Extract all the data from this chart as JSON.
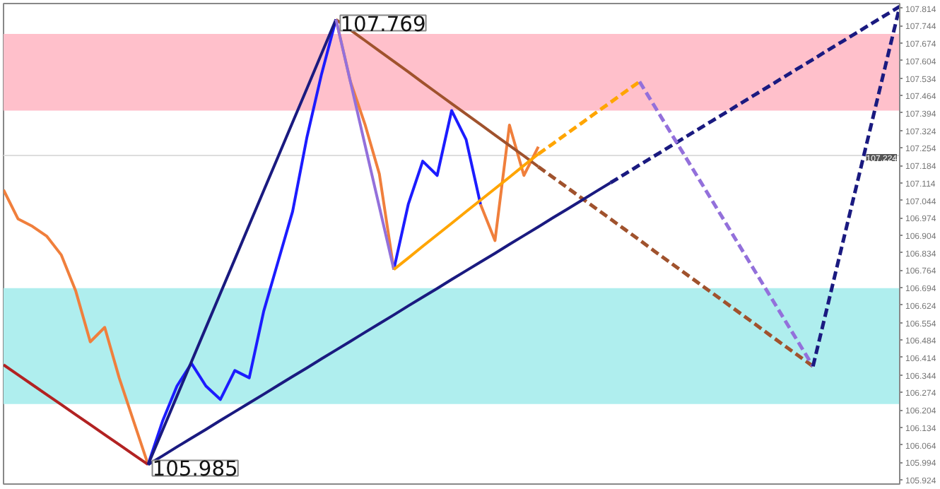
{
  "chart_data": {
    "type": "line",
    "ylim": [
      105.907,
      107.833
    ],
    "tick_labels": "y",
    "grid": false,
    "marker": "none",
    "categories": [
      null,
      null,
      null,
      null,
      null,
      null,
      null,
      null,
      null,
      null,
      null,
      null,
      null,
      null,
      null,
      null,
      null,
      null,
      null,
      null,
      null,
      null,
      null,
      null,
      null,
      null,
      null,
      null,
      null,
      null,
      null,
      null,
      null,
      null,
      null,
      null,
      null,
      null,
      null,
      null,
      null,
      null,
      null,
      null,
      null,
      null,
      null,
      null,
      null,
      null,
      null,
      null,
      null,
      null,
      null,
      null,
      null,
      null,
      null,
      null,
      null,
      null,
      null
    ],
    "yticks": [
      105.924,
      105.994,
      106.064,
      106.134,
      106.204,
      106.274,
      106.344,
      106.414,
      106.484,
      106.554,
      106.624,
      106.694,
      106.764,
      106.834,
      106.904,
      106.974,
      107.044,
      107.114,
      107.184,
      107.254,
      107.324,
      107.394,
      107.464,
      107.534,
      107.604,
      107.674,
      107.744,
      107.814
    ],
    "ref_lines": [
      {
        "axis": "y",
        "value": 107.224,
        "label": "107.224",
        "color": "#dddddd"
      }
    ],
    "bands": [
      {
        "axis": "y",
        "from": 107.404,
        "to": 107.711,
        "color": "#ffc0cb"
      },
      {
        "axis": "y",
        "from": 106.228,
        "to": 106.692,
        "color": "#afeeee"
      }
    ],
    "series": [
      {
        "color": "#f07f3c",
        "line_style": "solid",
        "values": [
          107.086,
          106.97,
          106.94,
          106.9,
          106.825,
          106.68,
          106.477,
          106.535,
          106.333,
          106.159,
          105.985,
          null,
          null,
          null,
          null,
          null,
          null,
          null,
          null,
          null,
          null,
          null,
          null,
          null,
          null,
          null,
          null,
          null,
          null,
          null,
          null,
          null,
          null,
          null,
          null,
          null,
          null,
          null,
          null,
          null,
          null,
          null,
          null,
          null,
          null,
          null,
          null,
          null,
          null,
          null,
          null,
          null,
          null,
          null,
          null,
          null,
          null,
          null,
          null,
          null,
          null,
          null,
          null
        ]
      },
      {
        "color": "#1c1cff",
        "line_style": "solid",
        "values": [
          null,
          null,
          null,
          null,
          null,
          null,
          null,
          null,
          null,
          null,
          105.985,
          106.159,
          106.3,
          106.391,
          106.3,
          106.246,
          106.362,
          106.333,
          106.6,
          106.8,
          107.0,
          107.3,
          107.55,
          107.769,
          null,
          null,
          null,
          null,
          null,
          null,
          null,
          null,
          null,
          null,
          null,
          null,
          null,
          null,
          null,
          null,
          null,
          null,
          null,
          null,
          null,
          null,
          null,
          null,
          null,
          null,
          null,
          null,
          null,
          null,
          null,
          null,
          null,
          null,
          null,
          null,
          null,
          null,
          null
        ]
      },
      {
        "color": "#f07f3c",
        "line_style": "solid",
        "values": [
          null,
          null,
          null,
          null,
          null,
          null,
          null,
          null,
          null,
          null,
          null,
          null,
          null,
          null,
          null,
          null,
          null,
          null,
          null,
          null,
          null,
          null,
          null,
          107.769,
          107.52,
          107.35,
          107.15,
          106.767,
          null,
          null,
          null,
          null,
          null,
          null,
          null,
          null,
          null,
          null,
          null,
          null,
          null,
          null,
          null,
          null,
          null,
          null,
          null,
          null,
          null,
          null,
          null,
          null,
          null,
          null,
          null,
          null,
          null,
          null,
          null,
          null,
          null,
          null,
          null
        ]
      },
      {
        "color": "#1c1cff",
        "line_style": "solid",
        "values": [
          null,
          null,
          null,
          null,
          null,
          null,
          null,
          null,
          null,
          null,
          null,
          null,
          null,
          null,
          null,
          null,
          null,
          null,
          null,
          null,
          null,
          null,
          null,
          null,
          null,
          null,
          null,
          106.767,
          107.028,
          107.201,
          107.144,
          107.404,
          107.288,
          107.028,
          null,
          null,
          null,
          null,
          null,
          null,
          null,
          null,
          null,
          null,
          null,
          null,
          null,
          null,
          null,
          null,
          null,
          null,
          null,
          null,
          null,
          null,
          null,
          null,
          null,
          null,
          null,
          null,
          null
        ]
      },
      {
        "color": "#f07f3c",
        "line_style": "solid",
        "values": [
          null,
          null,
          null,
          null,
          null,
          null,
          null,
          null,
          null,
          null,
          null,
          null,
          null,
          null,
          null,
          null,
          null,
          null,
          null,
          null,
          null,
          null,
          null,
          null,
          null,
          null,
          null,
          null,
          null,
          null,
          null,
          null,
          null,
          107.028,
          106.883,
          107.346,
          107.144,
          107.259,
          null,
          null,
          null,
          null,
          null,
          null,
          null,
          null,
          null,
          null,
          null,
          null,
          null,
          null,
          null,
          null,
          null,
          null,
          null,
          null,
          null,
          null,
          null,
          null,
          null
        ]
      },
      {
        "color": "#b22222",
        "line_style": "solid",
        "values": [
          106.385,
          106.345,
          106.305,
          106.265,
          106.225,
          106.185,
          106.145,
          106.105,
          106.065,
          106.025,
          105.985,
          null,
          null,
          null,
          null,
          null,
          null,
          null,
          null,
          null,
          null,
          null,
          null,
          null,
          null,
          null,
          null,
          null,
          null,
          null,
          null,
          null,
          null,
          null,
          null,
          null,
          null,
          null,
          null,
          null,
          null,
          null,
          null,
          null,
          null,
          null,
          null,
          null,
          null,
          null,
          null,
          null,
          null,
          null,
          null,
          null,
          null,
          null,
          null,
          null,
          null,
          null,
          null
        ]
      },
      {
        "color": "#1a1a80",
        "line_style": "solid",
        "values": [
          null,
          null,
          null,
          null,
          null,
          null,
          null,
          null,
          null,
          null,
          105.985,
          106.122,
          106.26,
          106.397,
          106.534,
          106.671,
          106.808,
          106.946,
          107.083,
          107.22,
          107.357,
          107.494,
          107.632,
          107.769,
          null,
          null,
          null,
          null,
          null,
          null,
          null,
          null,
          null,
          null,
          null,
          null,
          null,
          null,
          null,
          null,
          null,
          null,
          null,
          null,
          null,
          null,
          null,
          null,
          null,
          null,
          null,
          null,
          null,
          null,
          null,
          null,
          null,
          null,
          null,
          null,
          null,
          null,
          null
        ]
      },
      {
        "color": "#a0522d",
        "line_style": "solid",
        "values": [
          null,
          null,
          null,
          null,
          null,
          null,
          null,
          null,
          null,
          null,
          null,
          null,
          null,
          null,
          null,
          null,
          null,
          null,
          null,
          null,
          null,
          null,
          null,
          107.769,
          107.727,
          107.685,
          107.643,
          107.601,
          107.559,
          107.516,
          107.474,
          107.432,
          107.39,
          107.348,
          107.306,
          107.264,
          107.222,
          107.179,
          null,
          null,
          null,
          null,
          null,
          null,
          null,
          null,
          null,
          null,
          null,
          null,
          null,
          null,
          null,
          null,
          null,
          null,
          null,
          null,
          null,
          null,
          null,
          null,
          null
        ]
      },
      {
        "color": "#a0522d",
        "line_style": "dashed",
        "values": [
          null,
          null,
          null,
          null,
          null,
          null,
          null,
          null,
          null,
          null,
          null,
          null,
          null,
          null,
          null,
          null,
          null,
          null,
          null,
          null,
          null,
          null,
          null,
          null,
          null,
          null,
          null,
          null,
          null,
          null,
          null,
          null,
          null,
          null,
          null,
          null,
          null,
          107.179,
          107.137,
          107.095,
          107.053,
          107.011,
          106.969,
          106.927,
          106.885,
          106.842,
          106.8,
          106.758,
          106.716,
          106.674,
          106.632,
          106.59,
          106.548,
          106.505,
          106.463,
          106.421,
          106.379,
          null,
          null,
          null,
          null,
          null,
          null
        ]
      },
      {
        "color": "#1a1a80",
        "line_style": "solid",
        "values": [
          null,
          null,
          null,
          null,
          null,
          null,
          null,
          null,
          null,
          null,
          105.985,
          106.02,
          106.056,
          106.091,
          106.126,
          106.162,
          106.197,
          106.232,
          106.267,
          106.303,
          106.338,
          106.373,
          106.409,
          106.444,
          106.479,
          106.515,
          106.55,
          106.585,
          106.621,
          106.656,
          106.691,
          106.727,
          106.762,
          106.797,
          106.832,
          106.868,
          106.903,
          106.938,
          106.974,
          107.009,
          107.044,
          107.08,
          107.115,
          null,
          null,
          null,
          null,
          null,
          null,
          null,
          null,
          null,
          null,
          null,
          null,
          null,
          null,
          null,
          null,
          null,
          null,
          null,
          null
        ]
      },
      {
        "color": "#1a1a80",
        "line_style": "dashed",
        "values": [
          null,
          null,
          null,
          null,
          null,
          null,
          null,
          null,
          null,
          null,
          null,
          null,
          null,
          null,
          null,
          null,
          null,
          null,
          null,
          null,
          null,
          null,
          null,
          null,
          null,
          null,
          null,
          null,
          null,
          null,
          null,
          null,
          null,
          null,
          null,
          null,
          null,
          null,
          null,
          null,
          null,
          null,
          107.115,
          107.15,
          107.186,
          107.221,
          107.256,
          107.292,
          107.327,
          107.362,
          107.397,
          107.433,
          107.468,
          107.503,
          107.539,
          107.574,
          107.609,
          107.645,
          107.68,
          107.715,
          107.751,
          107.786,
          107.821
        ]
      },
      {
        "color": "#9370db",
        "line_style": "solid",
        "values": [
          null,
          null,
          null,
          null,
          null,
          null,
          null,
          null,
          null,
          null,
          null,
          null,
          null,
          null,
          null,
          null,
          null,
          null,
          null,
          null,
          null,
          null,
          null,
          107.769,
          107.519,
          107.268,
          107.018,
          106.767,
          null,
          null,
          null,
          null,
          null,
          null,
          null,
          null,
          null,
          null,
          null,
          null,
          null,
          null,
          null,
          null,
          null,
          null,
          null,
          null,
          null,
          null,
          null,
          null,
          null,
          null,
          null,
          null,
          null,
          null,
          null,
          null,
          null,
          null,
          null
        ]
      },
      {
        "color": "#ffa500",
        "line_style": "solid",
        "values": [
          null,
          null,
          null,
          null,
          null,
          null,
          null,
          null,
          null,
          null,
          null,
          null,
          null,
          null,
          null,
          null,
          null,
          null,
          null,
          null,
          null,
          null,
          null,
          null,
          null,
          null,
          null,
          106.767,
          106.813,
          106.86,
          106.906,
          106.952,
          106.999,
          107.045,
          107.091,
          107.137,
          107.184,
          107.23,
          null,
          null,
          null,
          null,
          null,
          null,
          null,
          null,
          null,
          null,
          null,
          null,
          null,
          null,
          null,
          null,
          null,
          null,
          null,
          null,
          null,
          null,
          null,
          null,
          null
        ]
      },
      {
        "color": "#ffa500",
        "line_style": "dashed",
        "values": [
          null,
          null,
          null,
          null,
          null,
          null,
          null,
          null,
          null,
          null,
          null,
          null,
          null,
          null,
          null,
          null,
          null,
          null,
          null,
          null,
          null,
          null,
          null,
          null,
          null,
          null,
          null,
          null,
          null,
          null,
          null,
          null,
          null,
          null,
          null,
          null,
          null,
          107.23,
          107.271,
          107.313,
          107.354,
          107.396,
          107.437,
          107.479,
          107.52,
          null,
          null,
          null,
          null,
          null,
          null,
          null,
          null,
          null,
          null,
          null,
          null,
          null,
          null,
          null,
          null,
          null,
          null
        ]
      },
      {
        "color": "#9370db",
        "line_style": "dashed",
        "values": [
          null,
          null,
          null,
          null,
          null,
          null,
          null,
          null,
          null,
          null,
          null,
          null,
          null,
          null,
          null,
          null,
          null,
          null,
          null,
          null,
          null,
          null,
          null,
          null,
          null,
          null,
          null,
          null,
          null,
          null,
          null,
          null,
          null,
          null,
          null,
          null,
          null,
          null,
          null,
          null,
          null,
          null,
          null,
          null,
          107.52,
          107.425,
          107.33,
          107.235,
          107.14,
          107.045,
          106.95,
          106.854,
          106.759,
          106.664,
          106.569,
          106.474,
          106.379,
          null,
          null,
          null,
          null,
          null,
          null
        ]
      },
      {
        "color": "#1a1a80",
        "line_style": "dashed",
        "values": [
          null,
          null,
          null,
          null,
          null,
          null,
          null,
          null,
          null,
          null,
          null,
          null,
          null,
          null,
          null,
          null,
          null,
          null,
          null,
          null,
          null,
          null,
          null,
          null,
          null,
          null,
          null,
          null,
          null,
          null,
          null,
          null,
          null,
          null,
          null,
          null,
          null,
          null,
          null,
          null,
          null,
          null,
          null,
          null,
          null,
          null,
          null,
          null,
          null,
          null,
          null,
          null,
          null,
          null,
          null,
          null,
          106.379,
          106.619,
          106.86,
          107.1,
          107.34,
          107.581,
          107.821
        ]
      }
    ],
    "annotations": [
      "107.769",
      "105.985"
    ]
  }
}
